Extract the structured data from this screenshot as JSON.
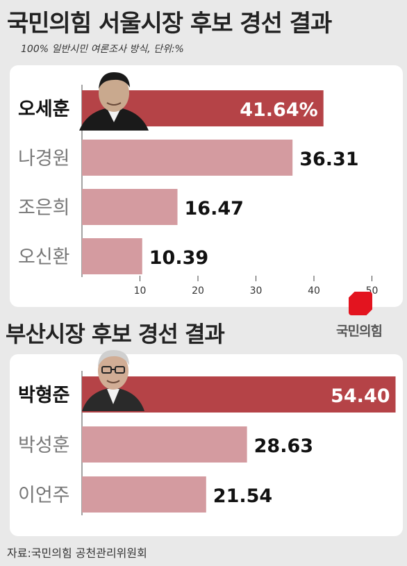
{
  "title": "국민의힘 서울시장 후보 경선 결과",
  "subtitle": "100% 일반시민 여론조사 방식, 단위:%",
  "busan_title": "부산시장 후보 경선 결과",
  "source": "자료:국민의힘 공천관리위원회",
  "logo_text": "국민의힘",
  "colors": {
    "winner": "#b54347",
    "other": "#d49ba0",
    "logo": "#e3141f"
  },
  "chart_data": [
    {
      "type": "bar",
      "orientation": "horizontal",
      "title": "국민의힘 서울시장 후보 경선 결과",
      "categories": [
        "오세훈",
        "나경원",
        "조은희",
        "오신환"
      ],
      "values": [
        41.64,
        36.31,
        16.47,
        10.39
      ],
      "value_labels": [
        "41.64%",
        "36.31",
        "16.47",
        "10.39"
      ],
      "xlim": [
        0,
        50
      ],
      "xticks": [
        10,
        20,
        30,
        40,
        50
      ],
      "highlight": "오세훈"
    },
    {
      "type": "bar",
      "orientation": "horizontal",
      "title": "부산시장 후보 경선 결과",
      "categories": [
        "박형준",
        "박성훈",
        "이언주"
      ],
      "values": [
        54.4,
        28.63,
        21.54
      ],
      "value_labels": [
        "54.40",
        "28.63",
        "21.54"
      ],
      "xlim": [
        0,
        54.4
      ],
      "highlight": "박형준"
    }
  ]
}
